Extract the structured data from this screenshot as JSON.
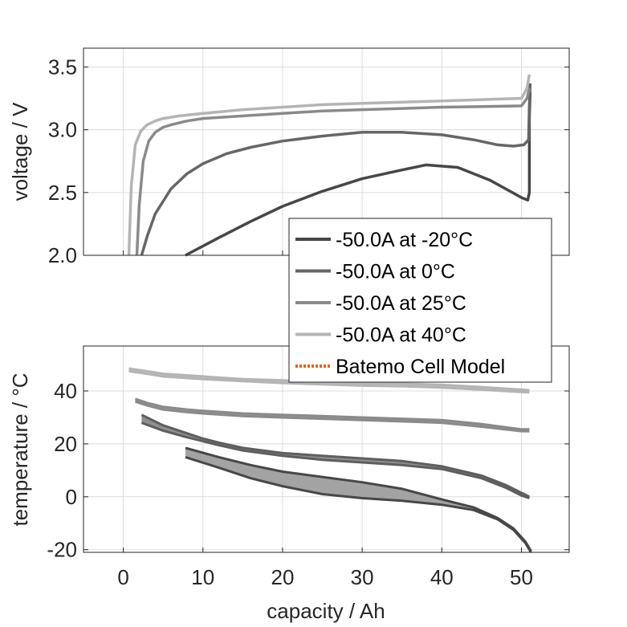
{
  "chart_data": [
    {
      "type": "line",
      "panel": "voltage",
      "ylabel": "voltage / V",
      "xlabel": "",
      "xlim": [
        -5,
        56
      ],
      "ylim": [
        2.0,
        3.65
      ],
      "xticks": [
        0,
        10,
        20,
        30,
        40,
        50
      ],
      "yticks": [
        2.0,
        2.5,
        3.0,
        3.5
      ],
      "ytick_labels": [
        "2.0",
        "2.5",
        "3.0",
        "3.5"
      ],
      "grid": true,
      "series": [
        {
          "name": "-50.0A at -20°C",
          "color": "#474747",
          "x": [
            7.8,
            12,
            16,
            20,
            25,
            30,
            35,
            38,
            42,
            46,
            48,
            50,
            50.8,
            51.0,
            51.0,
            51.1
          ],
          "y": [
            2.0,
            2.14,
            2.27,
            2.39,
            2.51,
            2.61,
            2.68,
            2.72,
            2.7,
            2.6,
            2.53,
            2.46,
            2.44,
            2.5,
            3.1,
            3.3
          ]
        },
        {
          "name": "-50.0A at 0°C",
          "color": "#666666",
          "x": [
            2.3,
            3,
            4,
            6,
            8,
            10,
            13,
            16,
            20,
            25,
            30,
            35,
            40,
            44,
            47,
            49,
            50.3,
            50.9,
            51.0,
            51.1
          ],
          "y": [
            2.0,
            2.15,
            2.33,
            2.53,
            2.65,
            2.73,
            2.81,
            2.86,
            2.91,
            2.95,
            2.98,
            2.98,
            2.96,
            2.92,
            2.88,
            2.87,
            2.88,
            2.92,
            3.2,
            3.37
          ]
        },
        {
          "name": "-50.0A at 25°C",
          "color": "#8a8a8a",
          "x": [
            1.7,
            2.0,
            2.5,
            3.2,
            4,
            5,
            6,
            8,
            10,
            15,
            20,
            25,
            30,
            35,
            40,
            45,
            50,
            50.7,
            51.0
          ],
          "y": [
            2.0,
            2.4,
            2.75,
            2.91,
            2.98,
            3.02,
            3.04,
            3.07,
            3.09,
            3.11,
            3.13,
            3.15,
            3.16,
            3.17,
            3.18,
            3.185,
            3.19,
            3.25,
            3.33
          ]
        },
        {
          "name": "-50.0A at 40°C",
          "color": "#b4b4b4",
          "x": [
            0.7,
            1.0,
            1.5,
            2.2,
            3,
            4,
            5,
            7,
            10,
            15,
            20,
            25,
            30,
            35,
            40,
            45,
            50,
            50.7,
            51.0
          ],
          "y": [
            2.0,
            2.55,
            2.88,
            2.99,
            3.04,
            3.07,
            3.09,
            3.11,
            3.13,
            3.16,
            3.18,
            3.2,
            3.21,
            3.22,
            3.23,
            3.24,
            3.25,
            3.33,
            3.44
          ]
        },
        {
          "name": "Batemo Cell Model",
          "color": "#e8601c",
          "style": "dotted",
          "x": [],
          "y": []
        }
      ],
      "legend": {
        "placement": "bottom-right",
        "entries": [
          "-50.0A at -20°C",
          "-50.0A at 0°C",
          "-50.0A at 25°C",
          "-50.0A at 40°C",
          "Batemo Cell Model"
        ]
      }
    },
    {
      "type": "area",
      "panel": "temperature",
      "ylabel": "temperature / °C",
      "xlabel": "capacity / Ah",
      "xlim": [
        -5,
        56
      ],
      "ylim": [
        -21,
        57
      ],
      "xticks": [
        0,
        10,
        20,
        30,
        40,
        50
      ],
      "yticks": [
        -20,
        0,
        20,
        40
      ],
      "ytick_labels": [
        "-20",
        "0",
        "20",
        "40"
      ],
      "grid": true,
      "bands": [
        {
          "name": "-50.0A at -20°C",
          "color": "#474747",
          "fill": "#a3a3a3",
          "x": [
            7.8,
            12,
            16,
            20,
            25,
            30,
            35,
            40,
            44,
            47,
            49,
            50.5,
            51.2
          ],
          "upper": [
            18.5,
            15,
            12,
            9.5,
            7.5,
            5.5,
            3,
            -1,
            -4,
            -8,
            -12,
            -17,
            -20.5
          ],
          "lower": [
            15,
            11,
            7,
            4,
            1,
            -0.5,
            -1.5,
            -3,
            -5,
            -8.5,
            -12.5,
            -17.5,
            -21
          ]
        },
        {
          "name": "-50.0A at 0°C",
          "color": "#5e5e5e",
          "fill": "#8f8f8f",
          "x": [
            2.3,
            5,
            8,
            10,
            12,
            15,
            20,
            25,
            30,
            35,
            40,
            45,
            48,
            50,
            51
          ],
          "upper": [
            31,
            27,
            24,
            22,
            20.5,
            18.5,
            16.5,
            15.5,
            14.5,
            13.5,
            11.5,
            8,
            4.5,
            1.5,
            0
          ],
          "lower": [
            28,
            25,
            22.5,
            21,
            19.5,
            17.5,
            15.5,
            14,
            13,
            12,
            10.5,
            7,
            3.5,
            0.5,
            -0.5
          ]
        },
        {
          "name": "-50.0A at 25°C",
          "color": "#8a8a8a",
          "fill": "#9e9e9e",
          "x": [
            1.5,
            3,
            5,
            8,
            10,
            15,
            20,
            25,
            30,
            35,
            40,
            45,
            50,
            51
          ],
          "upper": [
            37,
            35.5,
            34,
            33,
            32.5,
            31.5,
            31,
            30.5,
            30,
            29.5,
            29,
            27.5,
            25.5,
            25.5
          ],
          "lower": [
            36,
            34.5,
            33,
            32,
            31.5,
            30.5,
            30,
            29.5,
            29,
            28.5,
            28,
            26.5,
            24.8,
            24.8
          ]
        },
        {
          "name": "-50.0A at 40°C",
          "color": "#b4b4b4",
          "fill": "#c4c4c4",
          "x": [
            0.7,
            3,
            5,
            10,
            15,
            20,
            25,
            30,
            35,
            40,
            45,
            50,
            51
          ],
          "upper": [
            48.5,
            47.5,
            46.5,
            45.5,
            44.5,
            44,
            43.5,
            43,
            42.8,
            42.3,
            41.5,
            40.5,
            40.3
          ],
          "lower": [
            47.5,
            46.5,
            45.5,
            44.5,
            43.7,
            43,
            42.5,
            42,
            41.8,
            41.3,
            40.5,
            39.6,
            39.5
          ]
        }
      ]
    }
  ]
}
